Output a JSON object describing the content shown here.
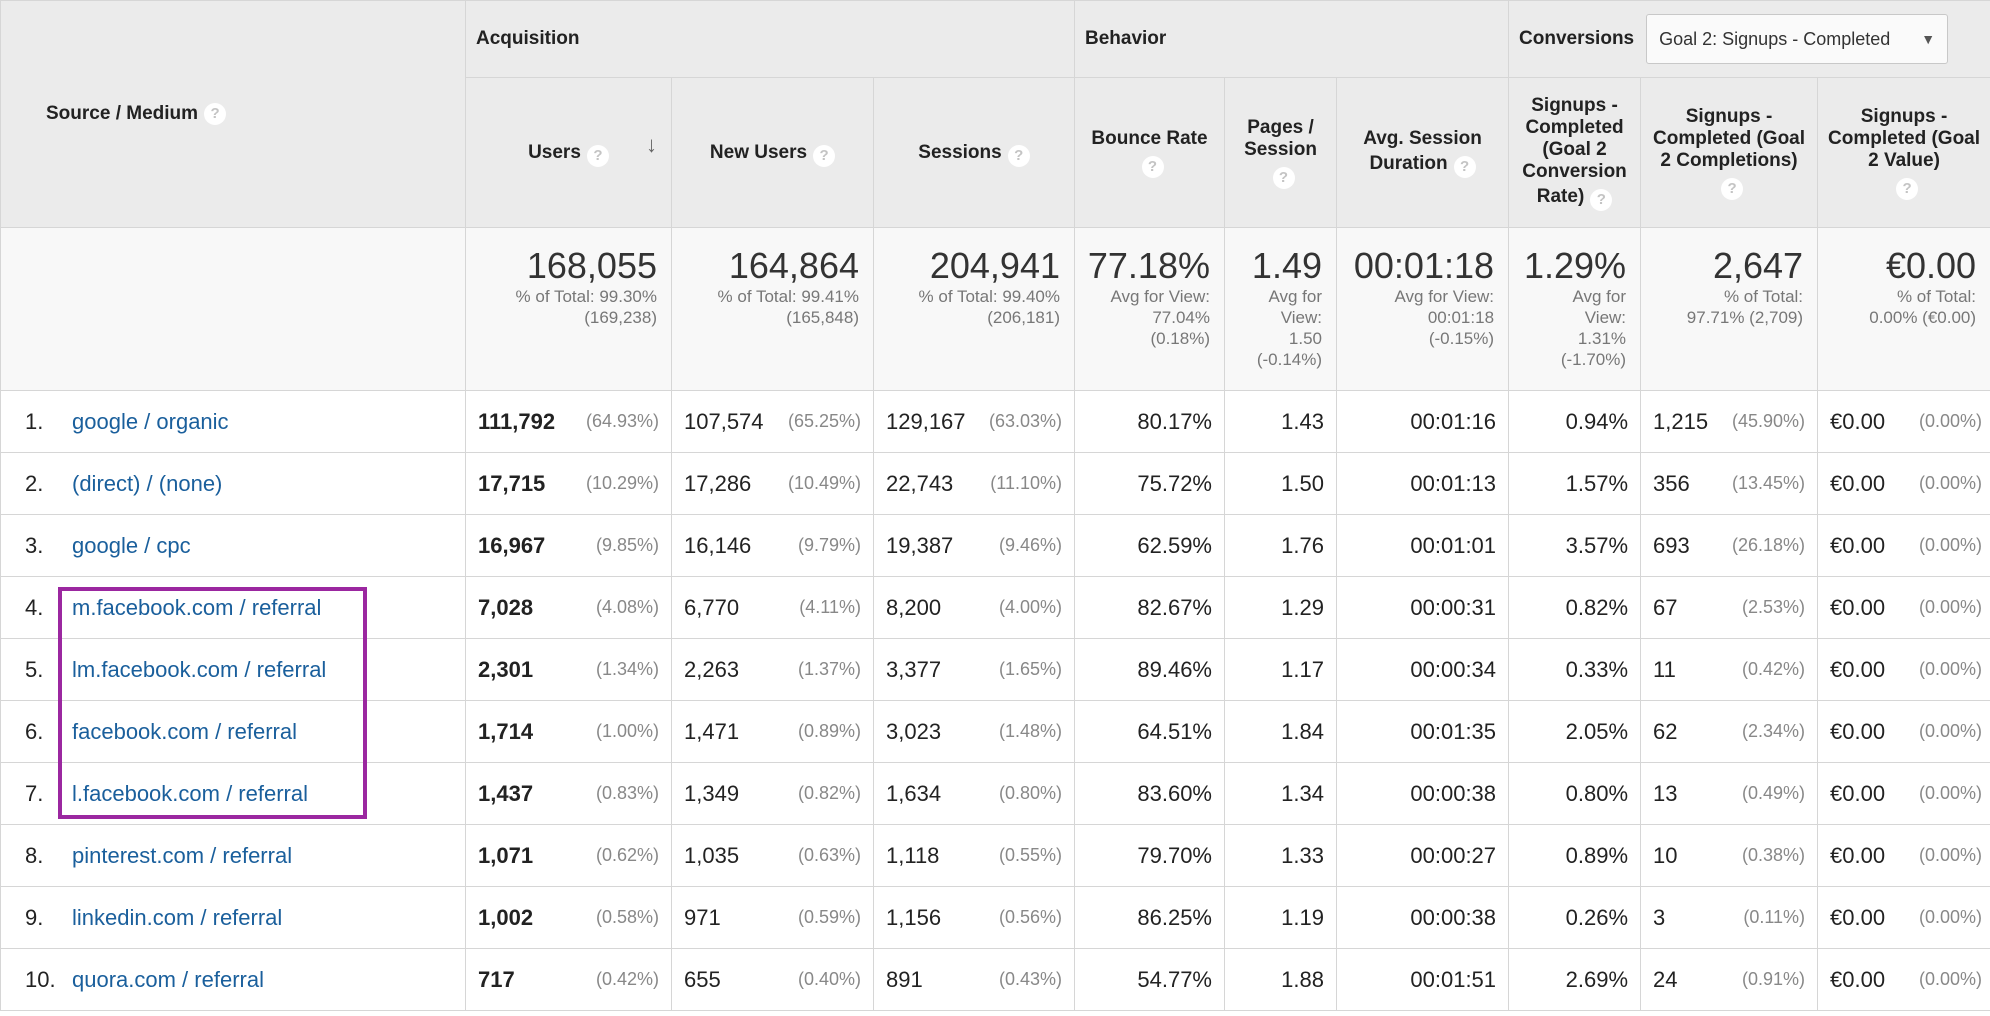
{
  "header": {
    "group_acquisition": "Acquisition",
    "group_behavior": "Behavior",
    "group_conversions": "Conversions",
    "goal_select": "Goal 2: Signups - Completed",
    "source_medium": "Source / Medium",
    "help_glyph": "?",
    "sort_glyph": "↓",
    "dropdown_glyph": "▼",
    "col_users": "Users",
    "col_new_users": "New Users",
    "col_sessions": "Sessions",
    "col_bounce": "Bounce Rate",
    "col_pages": "Pages / Session",
    "col_duration_a": "Avg. Session",
    "col_duration_b": "Duration",
    "col_conv_rate": "Signups - Completed (Goal 2 Conversion",
    "col_conv_rate_b": "Rate)",
    "col_completions": "Signups - Completed (Goal 2 Completions)",
    "col_value": "Signups - Completed (Goal 2 Value)"
  },
  "totals": {
    "users": "168,055",
    "users_sub1": "% of Total: 99.30%",
    "users_sub2": "(169,238)",
    "new_users": "164,864",
    "new_users_sub1": "% of Total: 99.41%",
    "new_users_sub2": "(165,848)",
    "sessions": "204,941",
    "sessions_sub1": "% of Total: 99.40%",
    "sessions_sub2": "(206,181)",
    "bounce": "77.18%",
    "bounce_sub1": "Avg for View:",
    "bounce_sub2": "77.04%",
    "bounce_sub3": "(0.18%)",
    "pages": "1.49",
    "pages_sub1": "Avg for",
    "pages_sub2": "View:",
    "pages_sub3": "1.50",
    "pages_sub4": "(-0.14%)",
    "duration": "00:01:18",
    "duration_sub1": "Avg for View:",
    "duration_sub2": "00:01:18",
    "duration_sub3": "(-0.15%)",
    "conv_rate": "1.29%",
    "conv_rate_sub1": "Avg for",
    "conv_rate_sub2": "View:",
    "conv_rate_sub3": "1.31%",
    "conv_rate_sub4": "(-1.70%)",
    "completions": "2,647",
    "completions_sub1": "% of Total:",
    "completions_sub2": "97.71% (2,709)",
    "value": "€0.00",
    "value_sub1": "% of Total:",
    "value_sub2": "0.00% (€0.00)"
  },
  "rows": [
    {
      "idx": "1.",
      "source": "google / organic",
      "users": "111,792",
      "users_pct": "(64.93%)",
      "new_users": "107,574",
      "new_users_pct": "(65.25%)",
      "sessions": "129,167",
      "sessions_pct": "(63.03%)",
      "bounce": "80.17%",
      "pages": "1.43",
      "duration": "00:01:16",
      "conv_rate": "0.94%",
      "completions": "1,215",
      "completions_pct": "(45.90%)",
      "value": "€0.00",
      "value_pct": "(0.00%)"
    },
    {
      "idx": "2.",
      "source": "(direct) / (none)",
      "users": "17,715",
      "users_pct": "(10.29%)",
      "new_users": "17,286",
      "new_users_pct": "(10.49%)",
      "sessions": "22,743",
      "sessions_pct": "(11.10%)",
      "bounce": "75.72%",
      "pages": "1.50",
      "duration": "00:01:13",
      "conv_rate": "1.57%",
      "completions": "356",
      "completions_pct": "(13.45%)",
      "value": "€0.00",
      "value_pct": "(0.00%)"
    },
    {
      "idx": "3.",
      "source": "google / cpc",
      "users": "16,967",
      "users_pct": "(9.85%)",
      "new_users": "16,146",
      "new_users_pct": "(9.79%)",
      "sessions": "19,387",
      "sessions_pct": "(9.46%)",
      "bounce": "62.59%",
      "pages": "1.76",
      "duration": "00:01:01",
      "conv_rate": "3.57%",
      "completions": "693",
      "completions_pct": "(26.18%)",
      "value": "€0.00",
      "value_pct": "(0.00%)"
    },
    {
      "idx": "4.",
      "source": "m.facebook.com / referral",
      "users": "7,028",
      "users_pct": "(4.08%)",
      "new_users": "6,770",
      "new_users_pct": "(4.11%)",
      "sessions": "8,200",
      "sessions_pct": "(4.00%)",
      "bounce": "82.67%",
      "pages": "1.29",
      "duration": "00:00:31",
      "conv_rate": "0.82%",
      "completions": "67",
      "completions_pct": "(2.53%)",
      "value": "€0.00",
      "value_pct": "(0.00%)"
    },
    {
      "idx": "5.",
      "source": "lm.facebook.com / referral",
      "users": "2,301",
      "users_pct": "(1.34%)",
      "new_users": "2,263",
      "new_users_pct": "(1.37%)",
      "sessions": "3,377",
      "sessions_pct": "(1.65%)",
      "bounce": "89.46%",
      "pages": "1.17",
      "duration": "00:00:34",
      "conv_rate": "0.33%",
      "completions": "11",
      "completions_pct": "(0.42%)",
      "value": "€0.00",
      "value_pct": "(0.00%)"
    },
    {
      "idx": "6.",
      "source": "facebook.com / referral",
      "users": "1,714",
      "users_pct": "(1.00%)",
      "new_users": "1,471",
      "new_users_pct": "(0.89%)",
      "sessions": "3,023",
      "sessions_pct": "(1.48%)",
      "bounce": "64.51%",
      "pages": "1.84",
      "duration": "00:01:35",
      "conv_rate": "2.05%",
      "completions": "62",
      "completions_pct": "(2.34%)",
      "value": "€0.00",
      "value_pct": "(0.00%)"
    },
    {
      "idx": "7.",
      "source": "l.facebook.com / referral",
      "users": "1,437",
      "users_pct": "(0.83%)",
      "new_users": "1,349",
      "new_users_pct": "(0.82%)",
      "sessions": "1,634",
      "sessions_pct": "(0.80%)",
      "bounce": "83.60%",
      "pages": "1.34",
      "duration": "00:00:38",
      "conv_rate": "0.80%",
      "completions": "13",
      "completions_pct": "(0.49%)",
      "value": "€0.00",
      "value_pct": "(0.00%)"
    },
    {
      "idx": "8.",
      "source": "pinterest.com / referral",
      "users": "1,071",
      "users_pct": "(0.62%)",
      "new_users": "1,035",
      "new_users_pct": "(0.63%)",
      "sessions": "1,118",
      "sessions_pct": "(0.55%)",
      "bounce": "79.70%",
      "pages": "1.33",
      "duration": "00:00:27",
      "conv_rate": "0.89%",
      "completions": "10",
      "completions_pct": "(0.38%)",
      "value": "€0.00",
      "value_pct": "(0.00%)"
    },
    {
      "idx": "9.",
      "source": "linkedin.com / referral",
      "users": "1,002",
      "users_pct": "(0.58%)",
      "new_users": "971",
      "new_users_pct": "(0.59%)",
      "sessions": "1,156",
      "sessions_pct": "(0.56%)",
      "bounce": "86.25%",
      "pages": "1.19",
      "duration": "00:00:38",
      "conv_rate": "0.26%",
      "completions": "3",
      "completions_pct": "(0.11%)",
      "value": "€0.00",
      "value_pct": "(0.00%)"
    },
    {
      "idx": "10.",
      "source": "quora.com / referral",
      "users": "717",
      "users_pct": "(0.42%)",
      "new_users": "655",
      "new_users_pct": "(0.40%)",
      "sessions": "891",
      "sessions_pct": "(0.43%)",
      "bounce": "54.77%",
      "pages": "1.88",
      "duration": "00:01:51",
      "conv_rate": "2.69%",
      "completions": "24",
      "completions_pct": "(0.91%)",
      "value": "€0.00",
      "value_pct": "(0.00%)"
    }
  ],
  "colors": {
    "link": "#1a5f9c",
    "highlight": "#9b27a0",
    "header_bg": "#ebebeb"
  }
}
